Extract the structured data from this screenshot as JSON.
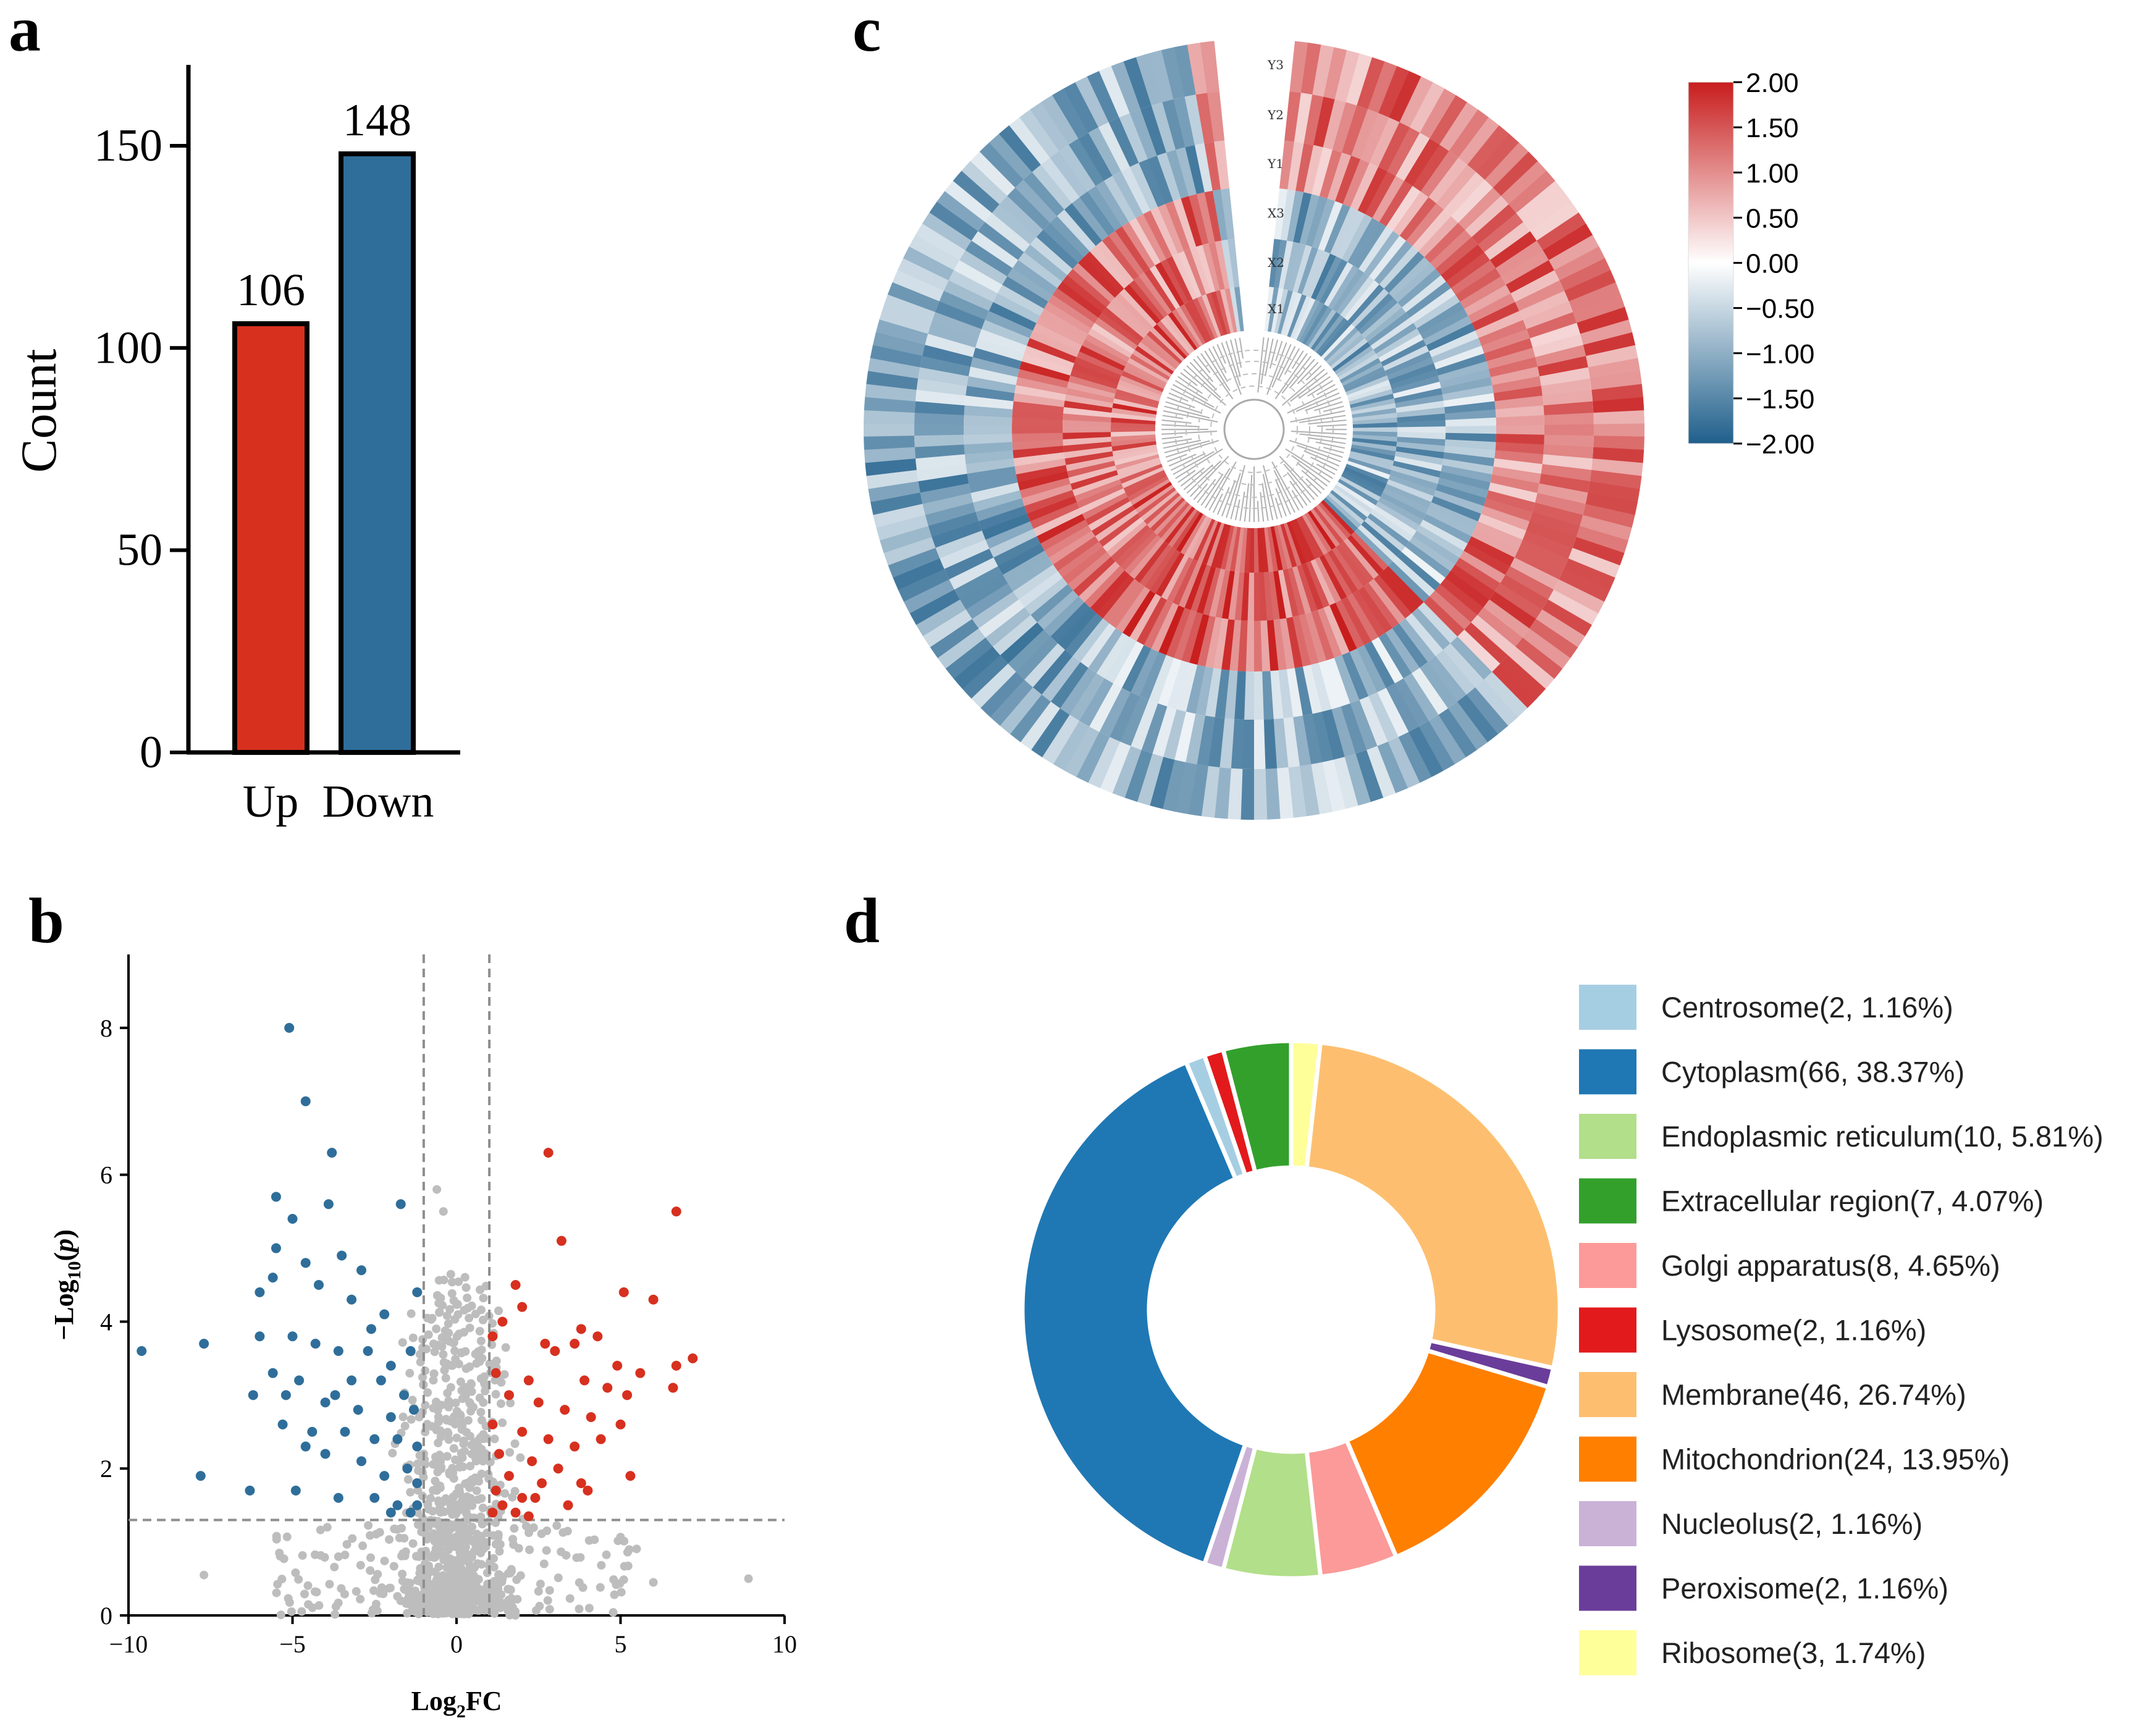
{
  "panels": {
    "a": "a",
    "b": "b",
    "c": "c",
    "d": "d"
  },
  "palette": {
    "red": "#d7301f",
    "blue": "#2f6e9a",
    "grey": "#bdbdbd",
    "dash": "#8f8f8f"
  },
  "chart_data": [
    {
      "id": "a",
      "type": "bar",
      "categories": [
        "Up",
        "Down"
      ],
      "values": [
        106,
        148
      ],
      "colors": [
        "#d7301f",
        "#2f6e9a"
      ],
      "data_labels": [
        "106",
        "148"
      ],
      "ylabel": "Count",
      "xlabel": "",
      "ylim": [
        0,
        170
      ],
      "yticks": [
        0,
        50,
        100,
        150
      ],
      "ytick_labels": [
        "0",
        "50",
        "100",
        "150"
      ]
    },
    {
      "id": "b",
      "type": "scatter",
      "title": "",
      "xlabel": "Log2FC",
      "ylabel": "-Log10(p)",
      "xlabel_parts": {
        "main": "Log",
        "sub": "2",
        "tail": "FC"
      },
      "ylabel_parts": {
        "pre": "-Log",
        "sub": "10",
        "tail": "(p)"
      },
      "xlim": [
        -10,
        10
      ],
      "ylim": [
        0,
        9
      ],
      "xticks": [
        -10,
        -5,
        0,
        5,
        10
      ],
      "xtick_labels": [
        "-10",
        "-5",
        "0",
        "5",
        "10"
      ],
      "yticks": [
        0,
        2,
        4,
        6,
        8
      ],
      "ytick_labels": [
        "0",
        "2",
        "4",
        "6",
        "8"
      ],
      "thresholds": {
        "fc": [
          -1,
          1
        ],
        "p": 1.3
      },
      "series": [
        {
          "name": "Down",
          "color": "#2f6e9a",
          "points": [
            [
              -5.1,
              8.0
            ],
            [
              -4.6,
              7.0
            ],
            [
              -3.8,
              6.3
            ],
            [
              -5.5,
              5.7
            ],
            [
              -1.7,
              5.6
            ],
            [
              -3.9,
              5.6
            ],
            [
              -5.0,
              5.4
            ],
            [
              -5.5,
              5.0
            ],
            [
              -3.5,
              4.9
            ],
            [
              -2.9,
              4.7
            ],
            [
              -4.6,
              4.8
            ],
            [
              -5.6,
              4.6
            ],
            [
              -6.0,
              4.4
            ],
            [
              -4.2,
              4.5
            ],
            [
              -3.2,
              4.3
            ],
            [
              -2.2,
              4.1
            ],
            [
              -1.2,
              4.4
            ],
            [
              -9.6,
              3.6
            ],
            [
              -7.7,
              3.7
            ],
            [
              -6.0,
              3.8
            ],
            [
              -5.0,
              3.8
            ],
            [
              -4.3,
              3.7
            ],
            [
              -3.6,
              3.6
            ],
            [
              -2.7,
              3.6
            ],
            [
              -2.0,
              3.4
            ],
            [
              -1.4,
              3.6
            ],
            [
              -5.6,
              3.3
            ],
            [
              -4.8,
              3.2
            ],
            [
              -3.2,
              3.2
            ],
            [
              -2.3,
              3.2
            ],
            [
              -1.6,
              3.0
            ],
            [
              -6.2,
              3.0
            ],
            [
              -5.2,
              3.0
            ],
            [
              -4.0,
              2.9
            ],
            [
              -3.0,
              2.8
            ],
            [
              -2.0,
              2.7
            ],
            [
              -1.3,
              2.8
            ],
            [
              -5.3,
              2.6
            ],
            [
              -4.4,
              2.5
            ],
            [
              -3.4,
              2.5
            ],
            [
              -2.5,
              2.4
            ],
            [
              -1.8,
              2.4
            ],
            [
              -1.2,
              2.3
            ],
            [
              -4.0,
              2.2
            ],
            [
              -2.9,
              2.1
            ],
            [
              -1.5,
              2.0
            ],
            [
              -2.2,
              1.9
            ],
            [
              -1.2,
              1.8
            ],
            [
              -7.8,
              1.9
            ],
            [
              -6.3,
              1.7
            ],
            [
              -4.9,
              1.7
            ],
            [
              -3.6,
              1.6
            ],
            [
              -2.5,
              1.6
            ],
            [
              -1.8,
              1.5
            ],
            [
              -1.2,
              1.5
            ],
            [
              -2.0,
              1.4
            ],
            [
              -1.4,
              1.4
            ],
            [
              -4.6,
              2.3
            ],
            [
              -3.7,
              3.0
            ],
            [
              -2.6,
              3.9
            ]
          ]
        },
        {
          "name": "Up",
          "color": "#d7301f",
          "points": [
            [
              2.8,
              6.3
            ],
            [
              6.7,
              5.5
            ],
            [
              3.2,
              5.1
            ],
            [
              1.8,
              4.5
            ],
            [
              5.1,
              4.4
            ],
            [
              6.0,
              4.3
            ],
            [
              2.0,
              4.2
            ],
            [
              1.4,
              4.0
            ],
            [
              3.8,
              3.9
            ],
            [
              1.1,
              3.8
            ],
            [
              2.7,
              3.7
            ],
            [
              3.6,
              3.7
            ],
            [
              4.3,
              3.8
            ],
            [
              3.0,
              3.6
            ],
            [
              4.9,
              3.4
            ],
            [
              6.7,
              3.4
            ],
            [
              7.2,
              3.5
            ],
            [
              5.6,
              3.3
            ],
            [
              1.2,
              3.3
            ],
            [
              2.2,
              3.2
            ],
            [
              3.9,
              3.2
            ],
            [
              4.6,
              3.1
            ],
            [
              5.2,
              3.0
            ],
            [
              1.6,
              3.0
            ],
            [
              2.5,
              2.9
            ],
            [
              3.3,
              2.8
            ],
            [
              4.1,
              2.7
            ],
            [
              5.0,
              2.6
            ],
            [
              6.6,
              3.1
            ],
            [
              1.1,
              2.6
            ],
            [
              2.0,
              2.5
            ],
            [
              2.8,
              2.4
            ],
            [
              3.6,
              2.3
            ],
            [
              4.4,
              2.4
            ],
            [
              1.3,
              2.2
            ],
            [
              2.3,
              2.1
            ],
            [
              3.1,
              2.0
            ],
            [
              1.6,
              1.9
            ],
            [
              2.6,
              1.8
            ],
            [
              3.8,
              1.8
            ],
            [
              5.3,
              1.9
            ],
            [
              4.0,
              1.7
            ],
            [
              1.2,
              1.7
            ],
            [
              2.0,
              1.6
            ],
            [
              1.4,
              1.5
            ],
            [
              1.8,
              1.4
            ],
            [
              2.2,
              1.35
            ],
            [
              1.1,
              1.4
            ],
            [
              3.4,
              1.5
            ],
            [
              2.4,
              1.6
            ]
          ]
        }
      ]
    },
    {
      "id": "c",
      "type": "heatmap",
      "layout": "circular",
      "ring_labels": [
        "Y3",
        "Y2",
        "Y1",
        "X3",
        "X2",
        "X1"
      ],
      "colorbar": {
        "min": -2.0,
        "max": 2.0,
        "ticks": [
          "2.00",
          "1.50",
          "1.00",
          "0.50",
          "0.00",
          "-0.50",
          "-1.00",
          "-1.50",
          "-2.00"
        ],
        "low": "#1f5f8b",
        "mid": "#ffffff",
        "high": "#c81d1d"
      }
    },
    {
      "id": "d",
      "type": "pie",
      "donut": true,
      "slices": [
        {
          "label": "Centrosome(2, 1.16%)",
          "value": 1.16,
          "color": "#a6cee3"
        },
        {
          "label": "Cytoplasm(66, 38.37%)",
          "value": 38.37,
          "color": "#1f78b4"
        },
        {
          "label": "Endoplasmic reticulum(10, 5.81%)",
          "value": 5.81,
          "color": "#b2df8a"
        },
        {
          "label": "Extracellular region(7, 4.07%)",
          "value": 4.07,
          "color": "#33a02c"
        },
        {
          "label": "Golgi apparatus(8, 4.65%)",
          "value": 4.65,
          "color": "#fb9a99"
        },
        {
          "label": "Lysosome(2, 1.16%)",
          "value": 1.16,
          "color": "#e31a1c"
        },
        {
          "label": "Membrane(46, 26.74%)",
          "value": 26.74,
          "color": "#fdbf6f"
        },
        {
          "label": "Mitochondrion(24, 13.95%)",
          "value": 13.95,
          "color": "#ff7f00"
        },
        {
          "label": "Nucleolus(2, 1.16%)",
          "value": 1.16,
          "color": "#cab2d6"
        },
        {
          "label": "Peroxisome(2, 1.16%)",
          "value": 1.16,
          "color": "#6a3d9a"
        },
        {
          "label": "Ribosome(3, 1.74%)",
          "value": 1.74,
          "color": "#ffff99"
        }
      ],
      "draw_order": [
        "Ribosome(3, 1.74%)",
        "Membrane(46, 26.74%)",
        "Peroxisome(2, 1.16%)",
        "Mitochondrion(24, 13.95%)",
        "Golgi apparatus(8, 4.65%)",
        "Endoplasmic reticulum(10, 5.81%)",
        "Nucleolus(2, 1.16%)",
        "Cytoplasm(66, 38.37%)",
        "Centrosome(2, 1.16%)",
        "Lysosome(2, 1.16%)",
        "Extracellular region(7, 4.07%)"
      ]
    }
  ]
}
